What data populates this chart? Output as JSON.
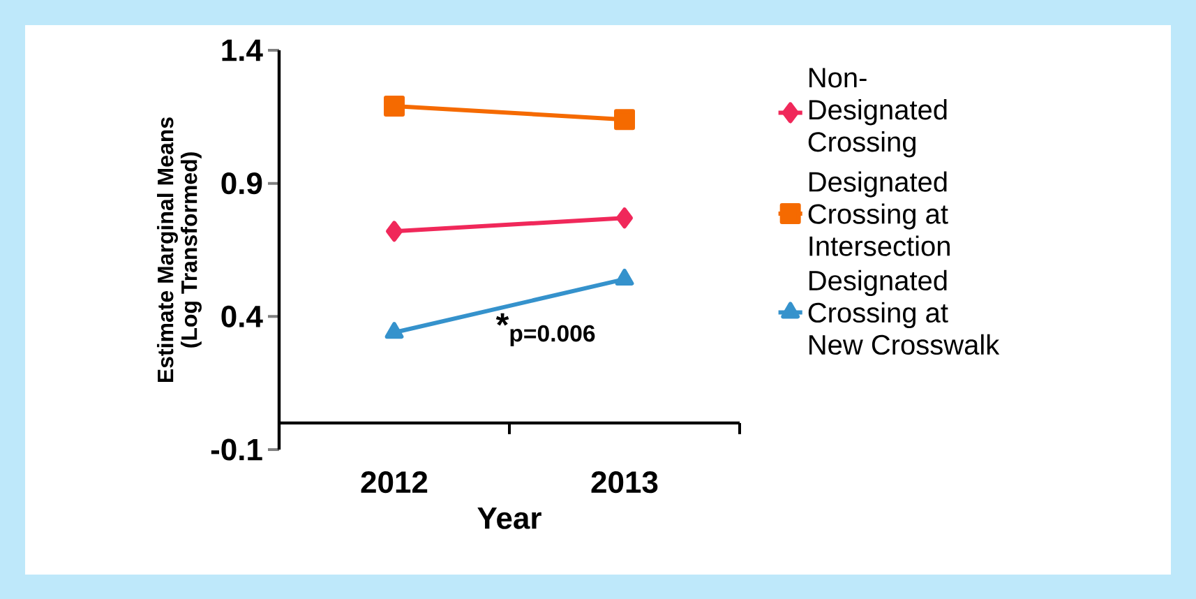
{
  "chart_data": {
    "type": "line",
    "xlabel": "Year",
    "ylabel": "Estimate Marginal Means\n(Log Transformed)",
    "categories": [
      "2012",
      "2013"
    ],
    "series": [
      {
        "name": "Non-Designated Crossing",
        "color": "#f0285a",
        "marker": "diamond",
        "values": [
          0.72,
          0.77
        ]
      },
      {
        "name": "Designated Crossing at Intersection",
        "color": "#f56a00",
        "marker": "square",
        "values": [
          1.19,
          1.14
        ]
      },
      {
        "name": "Designated Crossing at New Crosswalk",
        "color": "#3592cc",
        "marker": "triangle",
        "values": [
          0.34,
          0.54
        ]
      }
    ],
    "ylim": [
      -0.1,
      1.4
    ],
    "yticks": [
      -0.1,
      0.4,
      0.9,
      1.4
    ],
    "annotations": [
      "*$_{p=0.006}$"
    ],
    "legend": "right",
    "grid": false,
    "line_style": "solid"
  }
}
